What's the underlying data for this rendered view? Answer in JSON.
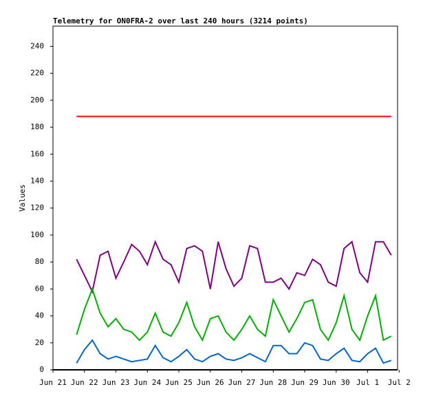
{
  "chart_data": {
    "type": "line",
    "title": "Telemetry for ON0FRA-2 over last 240 hours (3214 points)",
    "y_label": "Values",
    "x": [
      0.75,
      1.0,
      1.25,
      1.5,
      1.75,
      2.0,
      2.25,
      2.5,
      2.75,
      3.0,
      3.25,
      3.5,
      3.75,
      4.0,
      4.25,
      4.5,
      4.75,
      5.0,
      5.25,
      5.5,
      5.75,
      6.0,
      6.25,
      6.5,
      6.75,
      7.0,
      7.25,
      7.5,
      7.75,
      8.0,
      8.25,
      8.5,
      8.75,
      9.0,
      9.25,
      9.5,
      9.75,
      10.0,
      10.25,
      10.5,
      10.75
    ],
    "series": [
      {
        "color": "#ff0000",
        "values": [
          188,
          188,
          188,
          188,
          188,
          188,
          188,
          188,
          188,
          188,
          188,
          188,
          188,
          188,
          188,
          188,
          188,
          188,
          188,
          188,
          188,
          188,
          188,
          188,
          188,
          188,
          188,
          188,
          188,
          188,
          188,
          188,
          188,
          188,
          188,
          188,
          188,
          188,
          188,
          188,
          188
        ]
      },
      {
        "color": "#800080",
        "values": [
          82,
          70,
          58,
          85,
          88,
          68,
          80,
          93,
          88,
          78,
          95,
          82,
          78,
          65,
          90,
          92,
          88,
          60,
          95,
          75,
          62,
          68,
          92,
          90,
          65,
          65,
          68,
          60,
          72,
          70,
          82,
          78,
          65,
          62,
          90,
          95,
          72,
          65,
          95,
          95,
          85
        ]
      },
      {
        "color": "#00b000",
        "values": [
          26,
          45,
          60,
          42,
          32,
          38,
          30,
          28,
          22,
          28,
          42,
          28,
          25,
          35,
          50,
          32,
          22,
          38,
          40,
          28,
          22,
          30,
          40,
          30,
          25,
          52,
          40,
          28,
          38,
          50,
          52,
          30,
          22,
          35,
          55,
          30,
          22,
          40,
          55,
          22,
          25
        ]
      },
      {
        "color": "#0066cc",
        "values": [
          5,
          15,
          22,
          12,
          8,
          10,
          8,
          6,
          7,
          8,
          18,
          9,
          6,
          10,
          15,
          8,
          6,
          10,
          12,
          8,
          7,
          9,
          12,
          9,
          6,
          18,
          18,
          12,
          12,
          20,
          18,
          8,
          7,
          12,
          16,
          7,
          6,
          12,
          16,
          5,
          7
        ]
      }
    ],
    "xlim": [
      0,
      10.95
    ],
    "xticks": [
      {
        "value": 0,
        "label": "Jun 21"
      },
      {
        "value": 1,
        "label": "Jun 22"
      },
      {
        "value": 2,
        "label": "Jun 23"
      },
      {
        "value": 3,
        "label": "Jun 24"
      },
      {
        "value": 4,
        "label": "Jun 25"
      },
      {
        "value": 5,
        "label": "Jun 26"
      },
      {
        "value": 6,
        "label": "Jun 27"
      },
      {
        "value": 7,
        "label": "Jun 28"
      },
      {
        "value": 8,
        "label": "Jun 29"
      },
      {
        "value": 9,
        "label": "Jun 30"
      },
      {
        "value": 10,
        "label": "Jul 1"
      },
      {
        "value": 11,
        "label": "Jul 2"
      }
    ],
    "ylim": [
      0,
      255
    ],
    "yticks": [
      0,
      20,
      40,
      60,
      80,
      100,
      120,
      140,
      160,
      180,
      200,
      220,
      240
    ]
  }
}
